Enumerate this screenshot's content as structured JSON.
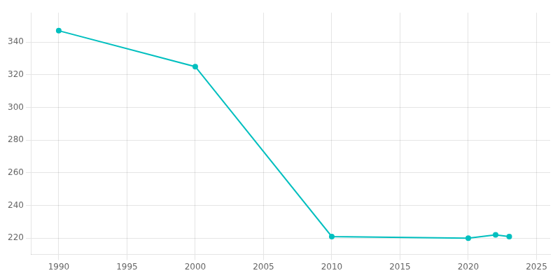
{
  "chart_data": {
    "type": "line",
    "x": [
      1990,
      2000,
      2010,
      2020,
      2022,
      2023
    ],
    "values": [
      347,
      325,
      221,
      220,
      222,
      221
    ],
    "color": "#00BFBF",
    "marker": "circle",
    "xlim": [
      1988,
      2026
    ],
    "ylim": [
      210,
      358
    ],
    "xticks": [
      1990,
      1995,
      2000,
      2005,
      2010,
      2015,
      2020,
      2025
    ],
    "yticks": [
      220,
      240,
      260,
      280,
      300,
      320,
      340
    ],
    "grid": true
  }
}
